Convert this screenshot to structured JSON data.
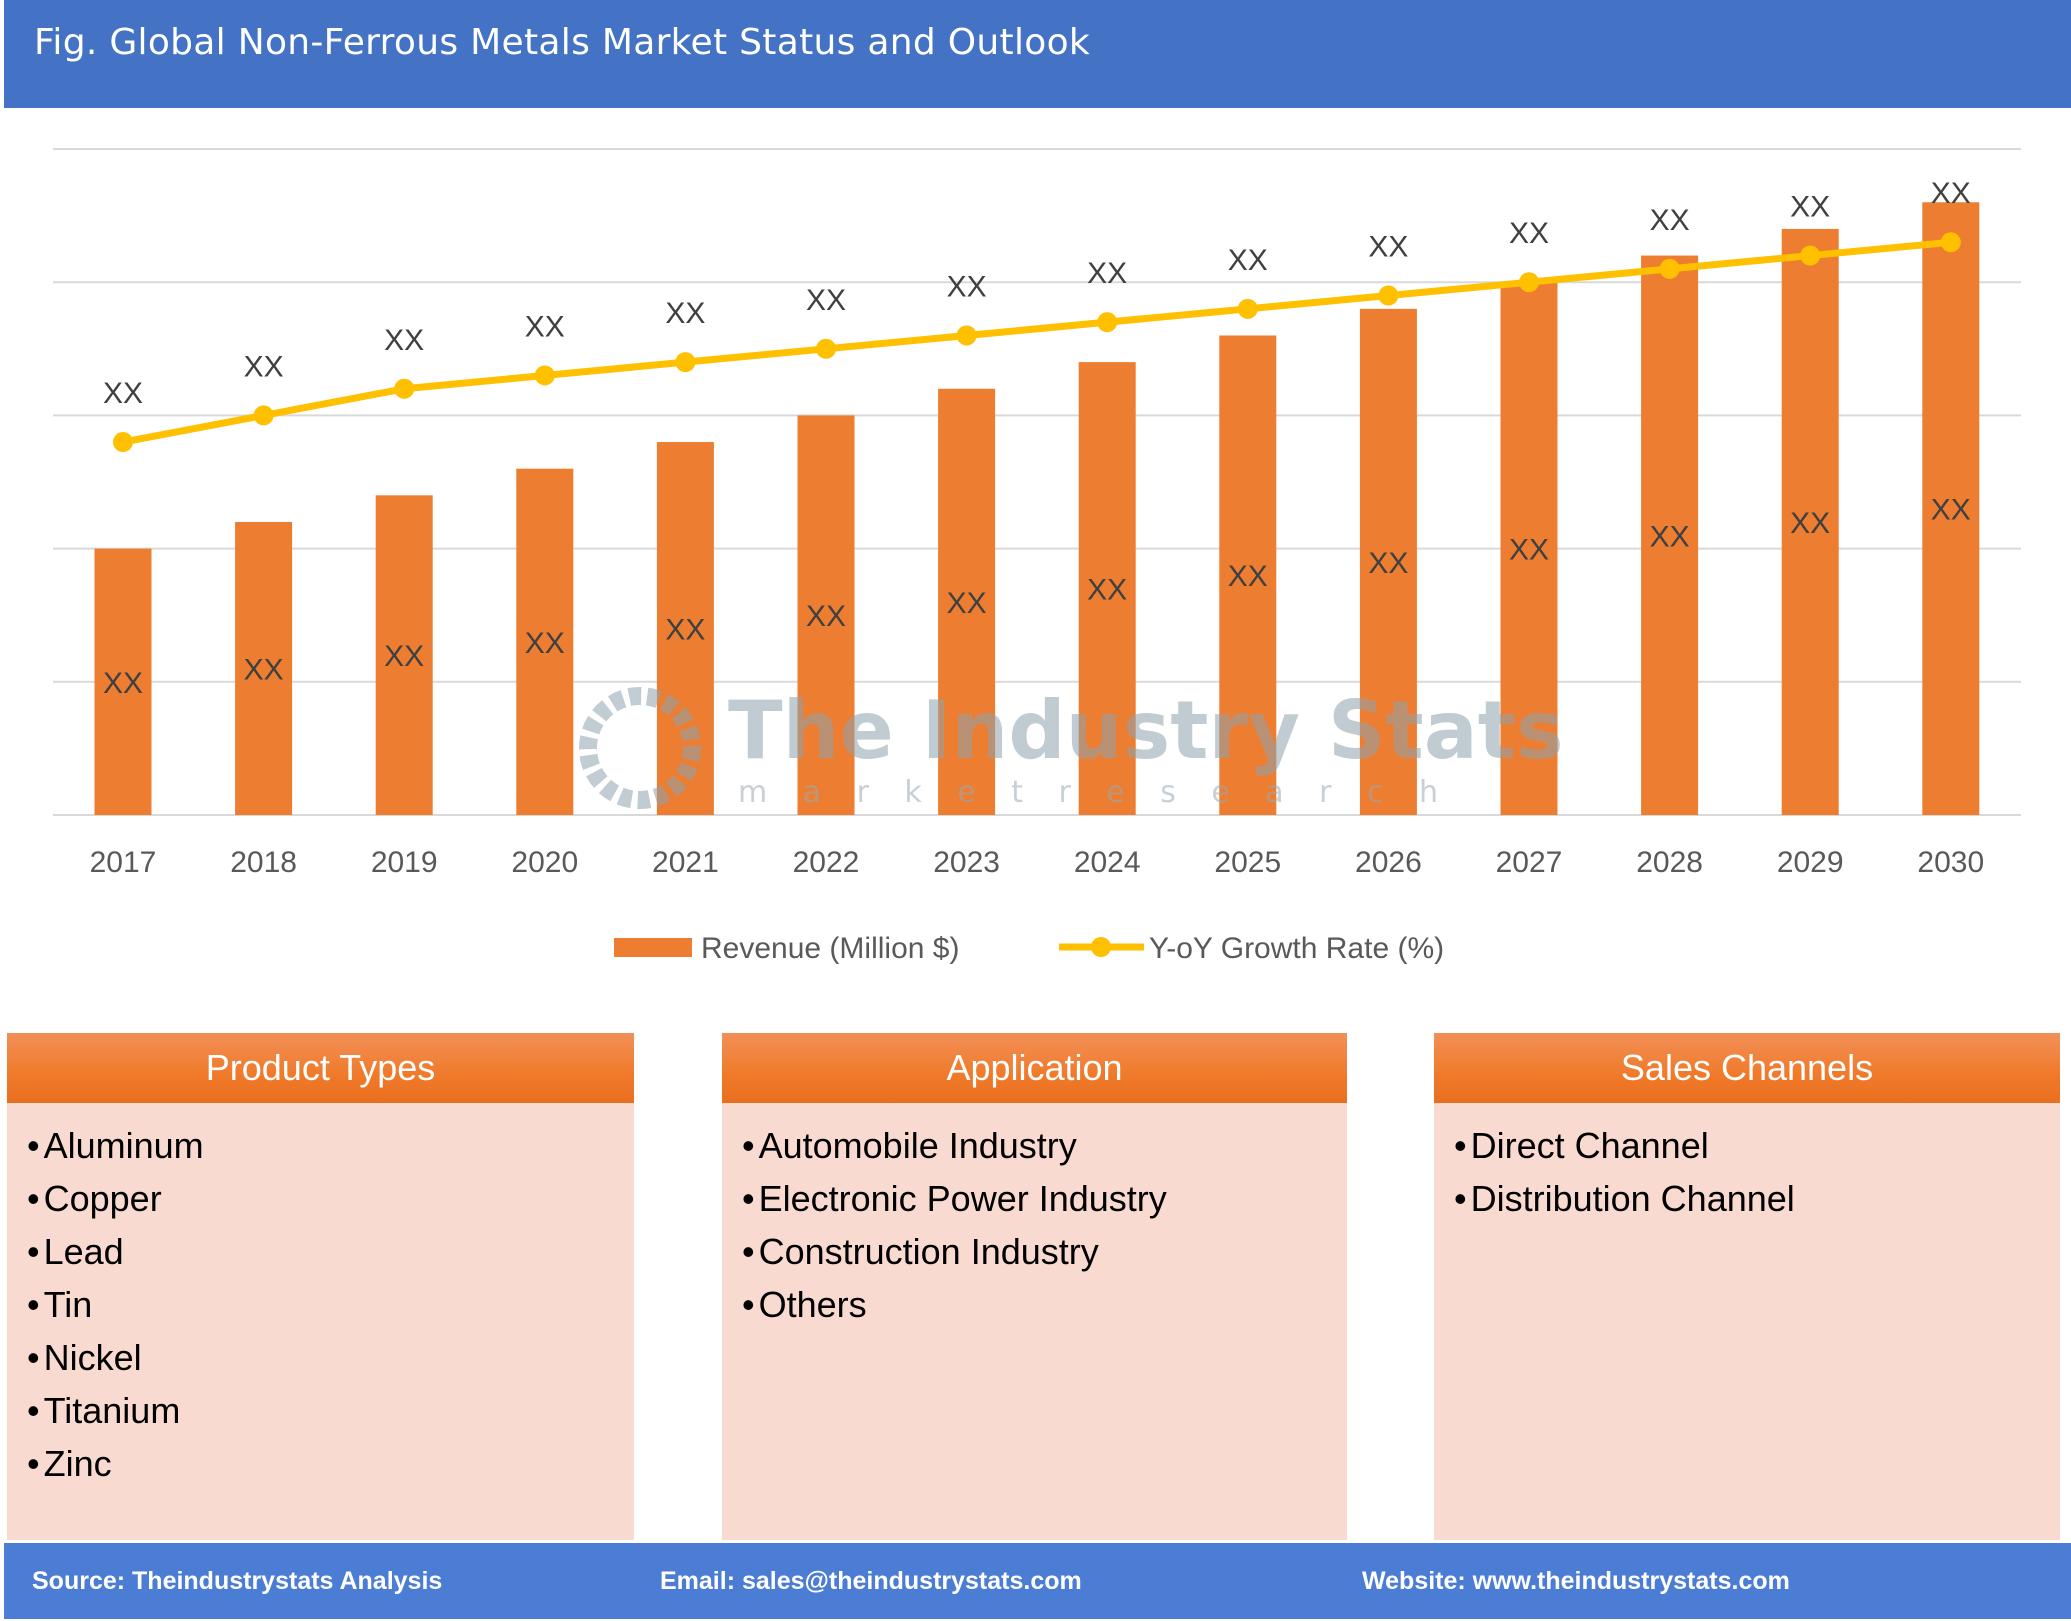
{
  "header": {
    "title": "Fig. Global Non-Ferrous Metals Market Status and Outlook"
  },
  "watermark": {
    "name": "The Industry Stats",
    "tagline": "m a r k e t   r e s e a r c h"
  },
  "chart_data": {
    "type": "bar+line",
    "title": "",
    "categories": [
      "2017",
      "2018",
      "2019",
      "2020",
      "2021",
      "2022",
      "2023",
      "2024",
      "2025",
      "2026",
      "2027",
      "2028",
      "2029",
      "2030"
    ],
    "ylim": [
      0,
      5
    ],
    "grid": true,
    "legend_placement": "bottom",
    "series": [
      {
        "name": "Revenue (Million $)",
        "type": "bar",
        "color": "#ED7D31",
        "values": [
          2.0,
          2.2,
          2.4,
          2.6,
          2.8,
          3.0,
          3.2,
          3.4,
          3.6,
          3.8,
          4.0,
          4.2,
          4.4,
          4.6
        ],
        "data_labels": [
          "XX",
          "XX",
          "XX",
          "XX",
          "XX",
          "XX",
          "XX",
          "XX",
          "XX",
          "XX",
          "XX",
          "XX",
          "XX",
          "XX"
        ]
      },
      {
        "name": "Y-oY Growth Rate (%)",
        "type": "line",
        "color": "#FFC000",
        "values": [
          2.8,
          3.0,
          3.2,
          3.3,
          3.4,
          3.5,
          3.6,
          3.7,
          3.8,
          3.9,
          4.0,
          4.1,
          4.2,
          4.3
        ],
        "data_labels": [
          "XX",
          "XX",
          "XX",
          "XX",
          "XX",
          "XX",
          "XX",
          "XX",
          "XX",
          "XX",
          "XX",
          "XX",
          "XX",
          "XX"
        ]
      }
    ]
  },
  "panels": [
    {
      "title": "Product Types",
      "items": [
        "Aluminum",
        "Copper",
        "Lead",
        "Tin",
        "Nickel",
        "Titanium",
        "Zinc"
      ]
    },
    {
      "title": "Application",
      "items": [
        "Automobile Industry",
        "Electronic Power Industry",
        "Construction Industry",
        "Others"
      ]
    },
    {
      "title": "Sales Channels",
      "items": [
        "Direct Channel",
        "Distribution Channel"
      ]
    }
  ],
  "footer": {
    "source": "Source: Theindustrystats Analysis",
    "email": "Email: sales@theindustrystats.com",
    "website": "Website: www.theindustrystats.com"
  }
}
